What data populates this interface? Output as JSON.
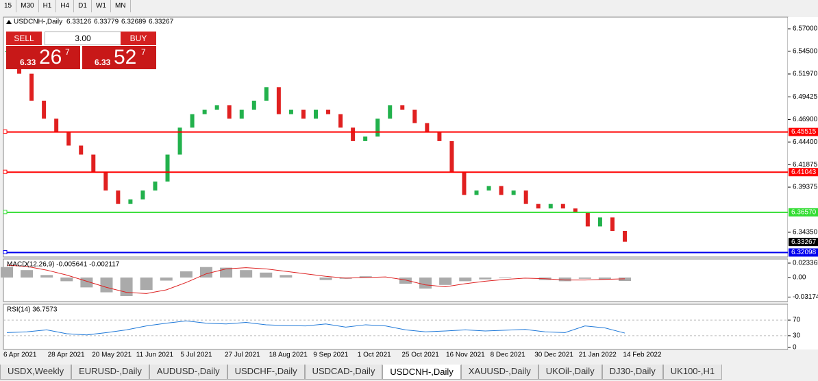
{
  "toolbar": {
    "timeframes": [
      "15",
      "M30",
      "H1",
      "H4",
      "D1",
      "W1",
      "MN"
    ]
  },
  "trade_panel": {
    "sell_label": "SELL",
    "buy_label": "BUY",
    "lots": "3.00",
    "sell_price": {
      "big": "6.33",
      "pips": "26",
      "frac": "7"
    },
    "buy_price": {
      "big": "6.33",
      "pips": "52",
      "frac": "7"
    }
  },
  "chart_data": [
    {
      "type": "candlestick",
      "title": "USDCNH-,Daily",
      "ohlc": [
        "6.33126",
        "6.33779",
        "6.32689",
        "6.33267"
      ],
      "up_color": "#22b14c",
      "down_color": "#e02020",
      "values": [
        6.545,
        6.52,
        6.49,
        6.47,
        6.455,
        6.44,
        6.43,
        6.41,
        6.39,
        6.375,
        6.38,
        6.39,
        6.4,
        6.43,
        6.46,
        6.475,
        6.48,
        6.485,
        6.47,
        6.48,
        6.49,
        6.505,
        6.475,
        6.48,
        6.47,
        6.48,
        6.475,
        6.46,
        6.445,
        6.45,
        6.47,
        6.485,
        6.48,
        6.465,
        6.455,
        6.445,
        6.41,
        6.385,
        6.39,
        6.395,
        6.385,
        6.39,
        6.375,
        6.37,
        6.375,
        6.37,
        6.365,
        6.35,
        6.36,
        6.345,
        6.333
      ],
      "x_labels": [
        "6 Apr 2021",
        "28 Apr 2021",
        "20 May 2021",
        "11 Jun 2021",
        "5 Jul 2021",
        "27 Jul 2021",
        "18 Aug 2021",
        "9 Sep 2021",
        "1 Oct 2021",
        "25 Oct 2021",
        "16 Nov 2021",
        "8 Dec 2021",
        "30 Dec 2021",
        "21 Jan 2022",
        "14 Feb 2022"
      ],
      "ylim": [
        6.316,
        6.583
      ],
      "yticks": [
        {
          "value": 6.57,
          "label": "6.57000"
        },
        {
          "value": 6.545,
          "label": "6.54500"
        },
        {
          "value": 6.5197,
          "label": "6.51970"
        },
        6.49425,
        {
          "value": 6.469,
          "label": "6.46900"
        },
        {
          "value": 6.444,
          "label": "6.44400"
        },
        6.41875,
        6.39375,
        {
          "value": 6.3435,
          "label": "6.34350"
        }
      ],
      "levels": [
        {
          "value": 6.45515,
          "label": "6.45515",
          "color": "#ff0000"
        },
        {
          "value": 6.41043,
          "label": "6.41043",
          "color": "#ff0000"
        },
        {
          "value": 6.3657,
          "label": "6.36570",
          "color": "#33dd33"
        },
        {
          "value": 6.32098,
          "label": "6.32098",
          "color": "#0000ee"
        }
      ],
      "current": {
        "value": 6.33267,
        "label": "6.33267"
      }
    },
    {
      "type": "macd",
      "title": "MACD(12,26,9) -0.005641 -0.002117",
      "color": "#aaaaaa",
      "signal_color": "#dd2222",
      "values": [
        0.017,
        0.012,
        0.004,
        -0.006,
        -0.016,
        -0.024,
        -0.03,
        -0.02,
        -0.005,
        0.01,
        0.017,
        0.016,
        0.012,
        0.008,
        0.004,
        0.0,
        -0.004,
        -0.002,
        0.002,
        0.0,
        -0.01,
        -0.018,
        -0.012,
        -0.006,
        -0.003,
        -0.001,
        0.0,
        -0.004,
        -0.006,
        -0.002,
        -0.003,
        -0.0056
      ],
      "signal": [
        0.02,
        0.018,
        0.012,
        0.004,
        -0.006,
        -0.016,
        -0.024,
        -0.026,
        -0.02,
        -0.008,
        0.006,
        0.014,
        0.016,
        0.014,
        0.01,
        0.006,
        0.002,
        -0.001,
        0,
        0.001,
        -0.004,
        -0.012,
        -0.015,
        -0.01,
        -0.006,
        -0.003,
        -0.001,
        -0.002,
        -0.004,
        -0.004,
        -0.003,
        -0.0021
      ],
      "ylim": [
        -0.0389,
        0.03
      ],
      "yticks": [
        0.023365,
        {
          "value": 0,
          "label": "0.00"
        },
        -0.031744
      ]
    },
    {
      "type": "rsi",
      "title": "RSI(14) 36.7573",
      "color": "#1e78d8",
      "values": [
        38,
        40,
        45,
        35,
        32,
        38,
        45,
        55,
        62,
        68,
        62,
        60,
        64,
        58,
        56,
        55,
        60,
        52,
        58,
        55,
        45,
        40,
        42,
        45,
        42,
        44,
        46,
        40,
        38,
        55,
        50,
        36.7573
      ],
      "ylim": [
        0,
        100
      ],
      "yticks": [
        70,
        30,
        0
      ],
      "levels": [
        70,
        30
      ]
    }
  ],
  "tabs": {
    "items": [
      "USDX,Weekly",
      "EURUSD-,Daily",
      "AUDUSD-,Daily",
      "USDCHF-,Daily",
      "USDCAD-,Daily",
      "USDCNH-,Daily",
      "XAUUSD-,Daily",
      "UKOil-,Daily",
      "DJ30-,Daily",
      "UK100-,H1"
    ],
    "active": 5
  }
}
